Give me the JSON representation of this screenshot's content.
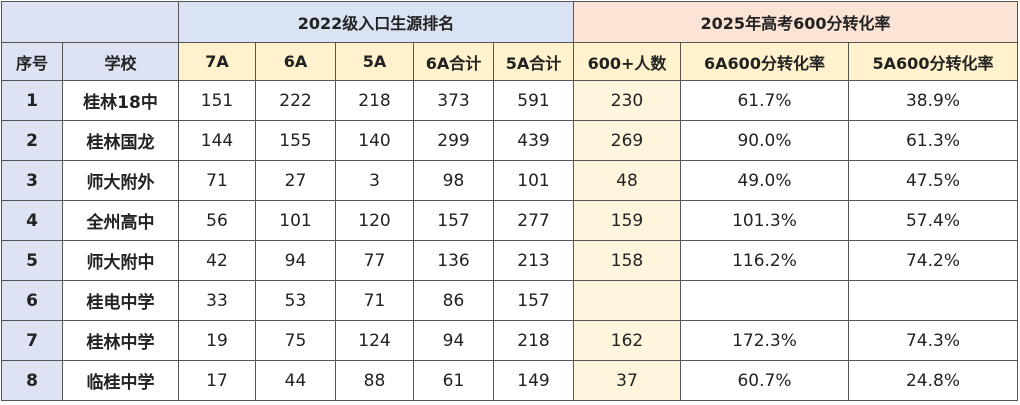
{
  "table": {
    "groups": [
      "2022级入口生源排名",
      "2025年高考600分转化率"
    ],
    "columns": [
      "序号",
      "学校",
      "7A",
      "6A",
      "5A",
      "6A合计",
      "5A合计",
      "600+人数",
      "6A600分转化率",
      "5A600分转化率"
    ],
    "rows": [
      [
        1,
        "桂林18中",
        151,
        222,
        218,
        373,
        591,
        230,
        "61.7%",
        "38.9%"
      ],
      [
        2,
        "桂林国龙",
        144,
        155,
        140,
        299,
        439,
        269,
        "90.0%",
        "61.3%"
      ],
      [
        3,
        "师大附外",
        71,
        27,
        3,
        98,
        101,
        48,
        "49.0%",
        "47.5%"
      ],
      [
        4,
        "全州高中",
        56,
        101,
        120,
        157,
        277,
        159,
        "101.3%",
        "57.4%"
      ],
      [
        5,
        "师大附中",
        42,
        94,
        77,
        136,
        213,
        158,
        "116.2%",
        "74.2%"
      ],
      [
        6,
        "桂电中学",
        33,
        53,
        71,
        86,
        157,
        null,
        null,
        null
      ],
      [
        7,
        "桂林中学",
        19,
        75,
        124,
        94,
        218,
        162,
        "172.3%",
        "74.3%"
      ],
      [
        8,
        "临桂中学",
        17,
        44,
        88,
        61,
        149,
        37,
        "60.7%",
        "24.8%"
      ]
    ]
  }
}
